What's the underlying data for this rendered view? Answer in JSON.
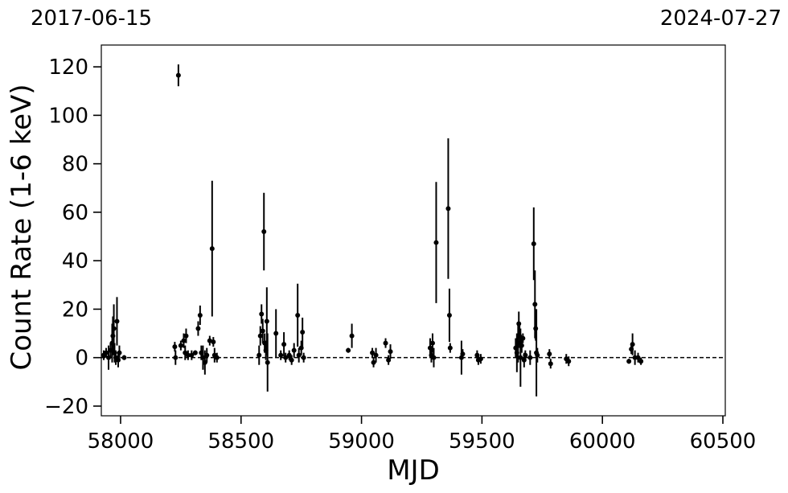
{
  "chart_data": {
    "type": "scatter",
    "title": "",
    "xlabel": "MJD",
    "ylabel": "Count Rate (1-6 keV)",
    "top_labels": {
      "left": "2017-06-15",
      "right": "2024-07-27"
    },
    "xlim": [
      57920,
      60510
    ],
    "ylim": [
      -24,
      129
    ],
    "xticks": [
      58000,
      58500,
      59000,
      59500,
      60000,
      60500
    ],
    "xtick_labels": [
      "58000",
      "58500",
      "59000",
      "59500",
      "60000",
      "60500"
    ],
    "yticks": [
      -20,
      0,
      20,
      40,
      60,
      80,
      100,
      120
    ],
    "ytick_labels": [
      "−20",
      "0",
      "20",
      "40",
      "60",
      "80",
      "100",
      "120"
    ],
    "reference_line": {
      "y": 0,
      "style": "dashed"
    },
    "grid": false,
    "legend": "none",
    "marker_color": "#000000",
    "series": [
      {
        "points": [
          {
            "x": 57930,
            "y": 1,
            "err": 2
          },
          {
            "x": 57940,
            "y": 2,
            "err": 2
          },
          {
            "x": 57950,
            "y": 0,
            "err": 5
          },
          {
            "x": 57958,
            "y": 3,
            "err": 3
          },
          {
            "x": 57965,
            "y": 6,
            "err": 8
          },
          {
            "x": 57968,
            "y": 9,
            "err": 8
          },
          {
            "x": 57972,
            "y": 12,
            "err": 10
          },
          {
            "x": 57975,
            "y": 2,
            "err": 4
          },
          {
            "x": 57980,
            "y": 0,
            "err": 3
          },
          {
            "x": 57985,
            "y": 15,
            "err": 10
          },
          {
            "x": 57990,
            "y": -1,
            "err": 3
          },
          {
            "x": 57995,
            "y": 2,
            "err": 3
          },
          {
            "x": 58015,
            "y": 0,
            "err": 1
          },
          {
            "x": 58225,
            "y": 4.5,
            "err": 2
          },
          {
            "x": 58228,
            "y": 0,
            "err": 3
          },
          {
            "x": 58240,
            "y": 116.5,
            "err": 4.5
          },
          {
            "x": 58250,
            "y": 5,
            "err": 2
          },
          {
            "x": 58262,
            "y": 7,
            "err": 3
          },
          {
            "x": 58268,
            "y": 2,
            "err": 3
          },
          {
            "x": 58272,
            "y": 9,
            "err": 3
          },
          {
            "x": 58280,
            "y": 1,
            "err": 2
          },
          {
            "x": 58295,
            "y": 1,
            "err": 2
          },
          {
            "x": 58310,
            "y": 2,
            "err": 1
          },
          {
            "x": 58322,
            "y": 12,
            "err": 3
          },
          {
            "x": 58330,
            "y": 17.5,
            "err": 4
          },
          {
            "x": 58335,
            "y": 2,
            "err": 3
          },
          {
            "x": 58342,
            "y": 0,
            "err": 5
          },
          {
            "x": 58350,
            "y": -2,
            "err": 5
          },
          {
            "x": 58358,
            "y": 1,
            "err": 3
          },
          {
            "x": 58370,
            "y": 7,
            "err": 2
          },
          {
            "x": 58380,
            "y": 45,
            "err": 28
          },
          {
            "x": 58385,
            "y": 6.5,
            "err": 2
          },
          {
            "x": 58390,
            "y": 1,
            "err": 3
          },
          {
            "x": 58400,
            "y": 0,
            "err": 2
          },
          {
            "x": 58575,
            "y": 1,
            "err": 4
          },
          {
            "x": 58580,
            "y": 9,
            "err": 4
          },
          {
            "x": 58585,
            "y": 18,
            "err": 4
          },
          {
            "x": 58590,
            "y": 11,
            "err": 5
          },
          {
            "x": 58595,
            "y": 52,
            "err": 16
          },
          {
            "x": 58598,
            "y": 6,
            "err": 4
          },
          {
            "x": 58603,
            "y": 3,
            "err": 4
          },
          {
            "x": 58607,
            "y": 15,
            "err": 14
          },
          {
            "x": 58610,
            "y": -2,
            "err": 12
          },
          {
            "x": 58645,
            "y": 10,
            "err": 10
          },
          {
            "x": 58665,
            "y": 1,
            "err": 2
          },
          {
            "x": 58678,
            "y": 5.5,
            "err": 5
          },
          {
            "x": 58685,
            "y": 0,
            "err": 2
          },
          {
            "x": 58700,
            "y": 1,
            "err": 2
          },
          {
            "x": 58710,
            "y": -1,
            "err": 2
          },
          {
            "x": 58720,
            "y": 3,
            "err": 3
          },
          {
            "x": 58735,
            "y": 17.5,
            "err": 13
          },
          {
            "x": 58740,
            "y": 1,
            "err": 3
          },
          {
            "x": 58750,
            "y": 4,
            "err": 3
          },
          {
            "x": 58755,
            "y": 10.5,
            "err": 6
          },
          {
            "x": 58760,
            "y": 0,
            "err": 2
          },
          {
            "x": 58945,
            "y": 3,
            "err": 1
          },
          {
            "x": 58960,
            "y": 9,
            "err": 5
          },
          {
            "x": 59045,
            "y": 2,
            "err": 2
          },
          {
            "x": 59050,
            "y": -2,
            "err": 2
          },
          {
            "x": 59060,
            "y": 1,
            "err": 3
          },
          {
            "x": 59100,
            "y": 6,
            "err": 2
          },
          {
            "x": 59112,
            "y": -1,
            "err": 2
          },
          {
            "x": 59120,
            "y": 2.5,
            "err": 3
          },
          {
            "x": 59285,
            "y": 4,
            "err": 4
          },
          {
            "x": 59290,
            "y": 1,
            "err": 3
          },
          {
            "x": 59295,
            "y": 6,
            "err": 4
          },
          {
            "x": 59300,
            "y": 0,
            "err": 4
          },
          {
            "x": 59310,
            "y": 47.5,
            "err": 25
          },
          {
            "x": 59360,
            "y": 61.5,
            "err": 29
          },
          {
            "x": 59365,
            "y": 17.5,
            "err": 11
          },
          {
            "x": 59368,
            "y": 4,
            "err": 2
          },
          {
            "x": 59415,
            "y": 0,
            "err": 7
          },
          {
            "x": 59420,
            "y": 1.5,
            "err": 2
          },
          {
            "x": 59480,
            "y": 1,
            "err": 2
          },
          {
            "x": 59485,
            "y": -1,
            "err": 2
          },
          {
            "x": 59495,
            "y": -0.5,
            "err": 2
          },
          {
            "x": 59640,
            "y": 4,
            "err": 4
          },
          {
            "x": 59645,
            "y": 2,
            "err": 8
          },
          {
            "x": 59650,
            "y": 6,
            "err": 8
          },
          {
            "x": 59653,
            "y": 14,
            "err": 5
          },
          {
            "x": 59656,
            "y": 9,
            "err": 5
          },
          {
            "x": 59660,
            "y": 0,
            "err": 12
          },
          {
            "x": 59665,
            "y": 5,
            "err": 3
          },
          {
            "x": 59670,
            "y": 8,
            "err": 2
          },
          {
            "x": 59675,
            "y": -1,
            "err": 3
          },
          {
            "x": 59680,
            "y": 1,
            "err": 2
          },
          {
            "x": 59700,
            "y": 0,
            "err": 3
          },
          {
            "x": 59715,
            "y": 47,
            "err": 15
          },
          {
            "x": 59720,
            "y": 22,
            "err": 14
          },
          {
            "x": 59723,
            "y": 12,
            "err": 5
          },
          {
            "x": 59726,
            "y": 2,
            "err": 18
          },
          {
            "x": 59730,
            "y": 1,
            "err": 3
          },
          {
            "x": 59780,
            "y": 1.5,
            "err": 2
          },
          {
            "x": 59785,
            "y": -2.5,
            "err": 2
          },
          {
            "x": 59850,
            "y": -0.5,
            "err": 2
          },
          {
            "x": 59860,
            "y": -1.5,
            "err": 2
          },
          {
            "x": 60110,
            "y": -1.5,
            "err": 1
          },
          {
            "x": 60120,
            "y": 3.5,
            "err": 2
          },
          {
            "x": 60125,
            "y": 5.5,
            "err": 4.5
          },
          {
            "x": 60135,
            "y": 0,
            "err": 3
          },
          {
            "x": 60148,
            "y": 0,
            "err": 2
          },
          {
            "x": 60160,
            "y": -1.5,
            "err": 1.5
          }
        ]
      }
    ]
  }
}
